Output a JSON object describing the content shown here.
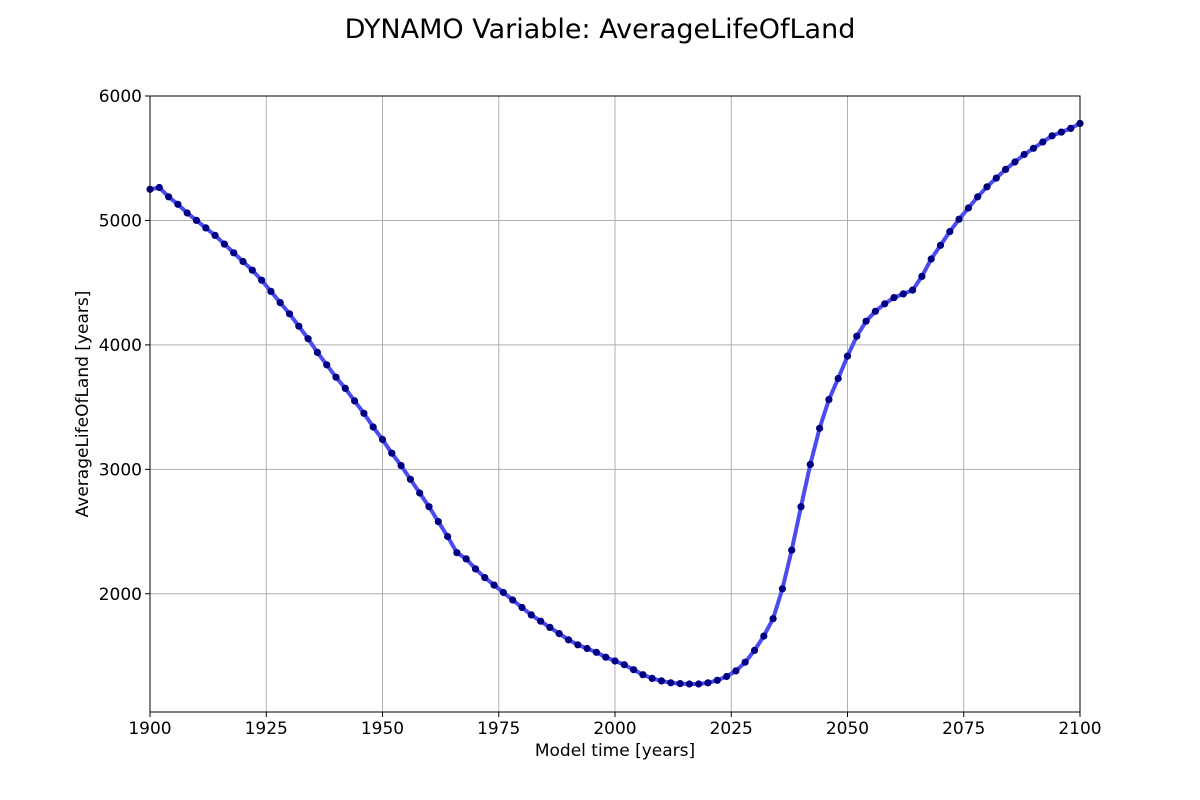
{
  "chart_data": {
    "type": "line",
    "title": "DYNAMO Variable: AverageLifeOfLand",
    "xlabel": "Model time [years]",
    "ylabel": "AverageLifeOfLand [years]",
    "xlim": [
      1900,
      2100
    ],
    "ylim": [
      1050,
      6000
    ],
    "x_ticks": [
      1900,
      1925,
      1950,
      1975,
      2000,
      2025,
      2050,
      2075,
      2100
    ],
    "y_ticks": [
      2000,
      3000,
      4000,
      5000,
      6000
    ],
    "grid": true,
    "series": [
      {
        "color": "#4b4bf0",
        "marker_color": "#000080",
        "x": [
          1900,
          1902,
          1904,
          1906,
          1908,
          1910,
          1912,
          1914,
          1916,
          1918,
          1920,
          1922,
          1924,
          1926,
          1928,
          1930,
          1932,
          1934,
          1936,
          1938,
          1940,
          1942,
          1944,
          1946,
          1948,
          1950,
          1952,
          1954,
          1956,
          1958,
          1960,
          1962,
          1964,
          1966,
          1968,
          1970,
          1972,
          1974,
          1976,
          1978,
          1980,
          1982,
          1984,
          1986,
          1988,
          1990,
          1992,
          1994,
          1996,
          1998,
          2000,
          2002,
          2004,
          2006,
          2008,
          2010,
          2012,
          2014,
          2016,
          2018,
          2020,
          2022,
          2024,
          2026,
          2028,
          2030,
          2032,
          2034,
          2036,
          2038,
          2040,
          2042,
          2044,
          2046,
          2048,
          2050,
          2052,
          2054,
          2056,
          2058,
          2060,
          2062,
          2064,
          2066,
          2068,
          2070,
          2072,
          2074,
          2076,
          2078,
          2080,
          2082,
          2084,
          2086,
          2088,
          2090,
          2092,
          2094,
          2096,
          2098,
          2100
        ],
        "y": [
          5250,
          5265,
          5190,
          5130,
          5060,
          5000,
          4940,
          4880,
          4810,
          4740,
          4670,
          4600,
          4520,
          4430,
          4340,
          4250,
          4150,
          4050,
          3940,
          3840,
          3740,
          3650,
          3550,
          3450,
          3340,
          3240,
          3130,
          3030,
          2920,
          2810,
          2700,
          2580,
          2460,
          2330,
          2280,
          2200,
          2130,
          2070,
          2010,
          1950,
          1890,
          1830,
          1780,
          1730,
          1680,
          1630,
          1590,
          1560,
          1530,
          1490,
          1460,
          1430,
          1390,
          1350,
          1320,
          1300,
          1285,
          1278,
          1275,
          1275,
          1285,
          1305,
          1335,
          1380,
          1450,
          1545,
          1660,
          1800,
          2040,
          2350,
          2700,
          3040,
          3330,
          3560,
          3730,
          3910,
          4070,
          4190,
          4270,
          4330,
          4380,
          4410,
          4440,
          4550,
          4690,
          4800,
          4910,
          5010,
          5100,
          5190,
          5270,
          5340,
          5410,
          5470,
          5530,
          5580,
          5630,
          5680,
          5710,
          5740,
          5780
        ]
      }
    ]
  }
}
